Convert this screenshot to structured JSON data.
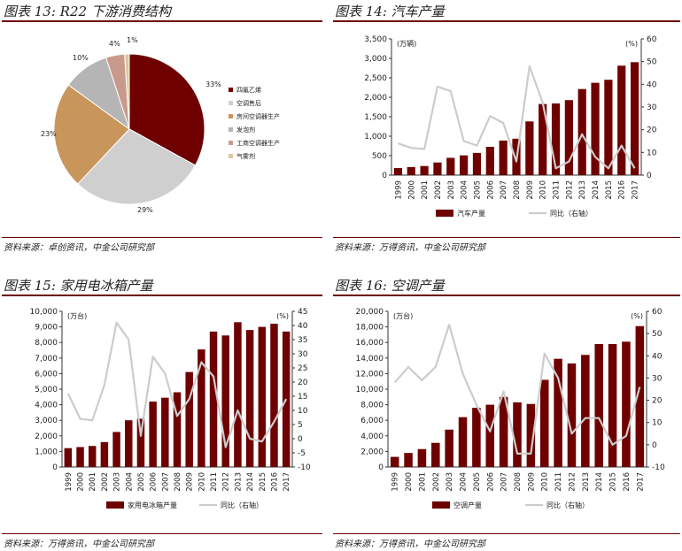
{
  "panels": [
    {
      "title": "图表 13: R22 下游消费结构",
      "source": "资料来源：卓创资讯，中金公司研究部",
      "chart_data": {
        "type": "pie",
        "slices": [
          {
            "name": "四氟乙烯",
            "value": 33,
            "label": "33%",
            "color": "#6e0000"
          },
          {
            "name": "空调售后",
            "value": 29,
            "label": "29%",
            "color": "#cfcfcf"
          },
          {
            "name": "房间空调器生产",
            "value": 23,
            "label": "23%",
            "color": "#c8955a"
          },
          {
            "name": "发泡剂",
            "value": 10,
            "label": "10%",
            "color": "#b5b5b5"
          },
          {
            "name": "工商空调器生产",
            "value": 4,
            "label": "4%",
            "color": "#c99a8c"
          },
          {
            "name": "气雾剂",
            "value": 1,
            "label": "1%",
            "color": "#dcc7a0"
          }
        ]
      }
    },
    {
      "title": "图表 14: 汽车产量",
      "source": "资料来源：万得资讯，中金公司研究部",
      "chart_data": {
        "type": "bar",
        "categories": [
          "1999",
          "2000",
          "2001",
          "2002",
          "2003",
          "2004",
          "2005",
          "2006",
          "2007",
          "2008",
          "2009",
          "2010",
          "2011",
          "2012",
          "2013",
          "2014",
          "2015",
          "2016",
          "2017"
        ],
        "left_unit": "(万辆)",
        "right_unit": "(%)",
        "ylim_left": [
          0,
          3500
        ],
        "yticks_left": [
          0,
          500,
          1000,
          1500,
          2000,
          2500,
          3000,
          3500
        ],
        "ytick_labels_left": [
          "0",
          "500",
          "1,000",
          "1,500",
          "2,000",
          "2,500",
          "3,000",
          "3,500"
        ],
        "ylim_right": [
          0,
          60
        ],
        "yticks_right": [
          0,
          10,
          20,
          30,
          40,
          50,
          60
        ],
        "ytick_labels_right": [
          "0",
          "10",
          "20",
          "30",
          "40",
          "50",
          "60"
        ],
        "series": [
          {
            "name": "汽车产量",
            "kind": "bar",
            "axis": "left",
            "color": "#6e0000",
            "values": [
              183,
              207,
              234,
              325,
              444,
              507,
              571,
              728,
              888,
              935,
              1380,
              1827,
              1842,
              1927,
              2212,
              2372,
              2450,
              2812,
              2902
            ]
          },
          {
            "name": "同比（右轴）",
            "kind": "line",
            "axis": "right",
            "color": "#cccccc",
            "values": [
              14,
              12,
              11.5,
              39,
              37,
              15,
              13,
              26,
              23,
              6,
              48,
              32,
              3,
              6,
              18,
              8,
              3,
              13,
              3
            ]
          }
        ]
      }
    },
    {
      "title": "图表 15: 家用电冰箱产量",
      "source": "资料来源：万得资讯，中金公司研究部",
      "chart_data": {
        "type": "bar",
        "categories": [
          "1999",
          "2000",
          "2001",
          "2002",
          "2003",
          "2004",
          "2005",
          "2006",
          "2007",
          "2008",
          "2009",
          "2010",
          "2011",
          "2012",
          "2013",
          "2014",
          "2015",
          "2016",
          "2017"
        ],
        "left_unit": "(万台)",
        "right_unit": "(%)",
        "ylim_left": [
          0,
          10000
        ],
        "yticks_left": [
          0,
          1000,
          2000,
          3000,
          4000,
          5000,
          6000,
          7000,
          8000,
          9000,
          10000
        ],
        "ytick_labels_left": [
          "0",
          "1,000",
          "2,000",
          "3,000",
          "4,000",
          "5,000",
          "6,000",
          "7,000",
          "8,000",
          "9,000",
          "10,000"
        ],
        "ylim_right": [
          -10,
          45
        ],
        "yticks_right": [
          -10,
          -5,
          0,
          5,
          10,
          15,
          20,
          25,
          30,
          35,
          40,
          45
        ],
        "ytick_labels_right": [
          "-10",
          "-5",
          "0",
          "5",
          "10",
          "15",
          "20",
          "25",
          "30",
          "35",
          "40",
          "45"
        ],
        "series": [
          {
            "name": "家用电冰箱产量",
            "kind": "bar",
            "axis": "left",
            "color": "#6e0000",
            "values": [
              1210,
              1280,
              1350,
              1600,
              2250,
              3000,
              3100,
              4200,
              4450,
              4800,
              6100,
              7550,
              8700,
              8450,
              9300,
              8800,
              9000,
              9200,
              8700
            ]
          },
          {
            "name": "同比（右轴）",
            "kind": "line",
            "axis": "right",
            "color": "#cccccc",
            "values": [
              16,
              7,
              6.5,
              19,
              41,
              35,
              1,
              29,
              23,
              8,
              14,
              27,
              22,
              -3,
              10,
              0,
              -1,
              6,
              14
            ]
          }
        ]
      }
    },
    {
      "title": "图表 16: 空调产量",
      "source": "资料来源：万得资讯，中金公司研究部",
      "chart_data": {
        "type": "bar",
        "categories": [
          "1999",
          "2000",
          "2001",
          "2002",
          "2003",
          "2004",
          "2005",
          "2006",
          "2007",
          "2008",
          "2009",
          "2010",
          "2011",
          "2012",
          "2013",
          "2014",
          "2015",
          "2016",
          "2017"
        ],
        "left_unit": "(万台)",
        "right_unit": "(%)",
        "ylim_left": [
          0,
          20000
        ],
        "yticks_left": [
          0,
          2000,
          4000,
          6000,
          8000,
          10000,
          12000,
          14000,
          16000,
          18000,
          20000
        ],
        "ytick_labels_left": [
          "0",
          "2,000",
          "4,000",
          "6,000",
          "8,000",
          "10,000",
          "12,000",
          "14,000",
          "16,000",
          "18,000",
          "20,000"
        ],
        "ylim_right": [
          -10,
          60
        ],
        "yticks_right": [
          -10,
          0,
          10,
          20,
          30,
          40,
          50,
          60
        ],
        "ytick_labels_right": [
          "-10",
          "0",
          "10",
          "20",
          "30",
          "40",
          "50",
          "60"
        ],
        "series": [
          {
            "name": "空调产量",
            "kind": "bar",
            "axis": "left",
            "color": "#6e0000",
            "values": [
              1300,
              1800,
              2300,
              3100,
              4800,
              6400,
              7600,
              8000,
              9000,
              8300,
              8100,
              11200,
              13900,
              13300,
              14400,
              15800,
              15800,
              16100,
              18100
            ]
          },
          {
            "name": "同比（右轴）",
            "kind": "line",
            "axis": "right",
            "color": "#cccccc",
            "values": [
              28,
              35,
              29,
              35,
              54,
              32,
              18,
              6,
              24,
              -4,
              -4,
              41,
              30,
              5,
              12,
              12,
              0,
              4,
              26
            ]
          }
        ]
      }
    }
  ]
}
